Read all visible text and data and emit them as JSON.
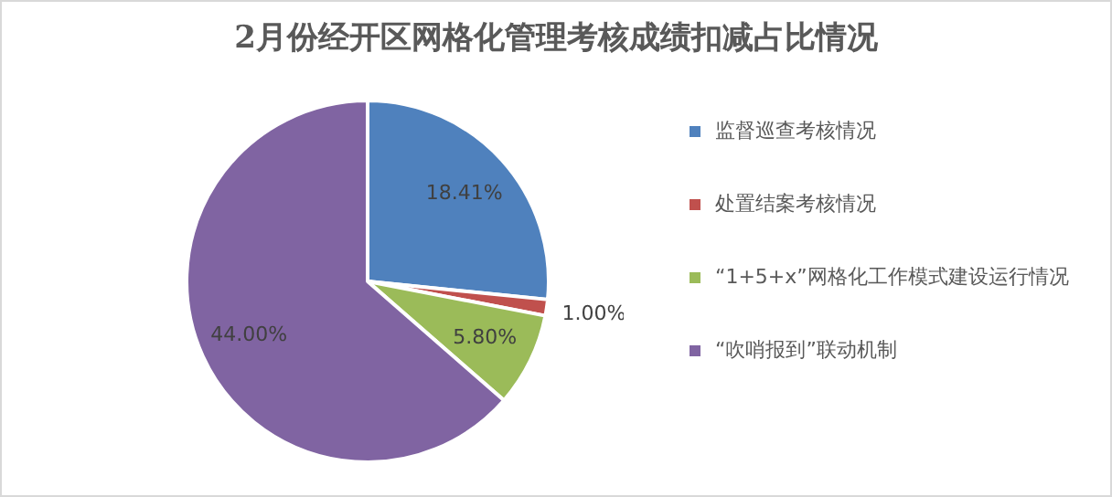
{
  "chart_data": {
    "type": "pie",
    "title": "2月份经开区网格化管理考核成绩扣减占比情况",
    "categories": [
      "监督巡查考核情况",
      "处置结案考核情况",
      "“1+5+x”网格化工作模式建设运行情况",
      "“吹哨报到”联动机制"
    ],
    "values": [
      18.41,
      1.0,
      5.8,
      44.0
    ],
    "value_labels": [
      "18.41%",
      "1.00%",
      "5.80%",
      "44.00%"
    ],
    "colors": [
      "#4f81bd",
      "#c0504d",
      "#9bbb59",
      "#8064a2"
    ],
    "legend": "right"
  }
}
